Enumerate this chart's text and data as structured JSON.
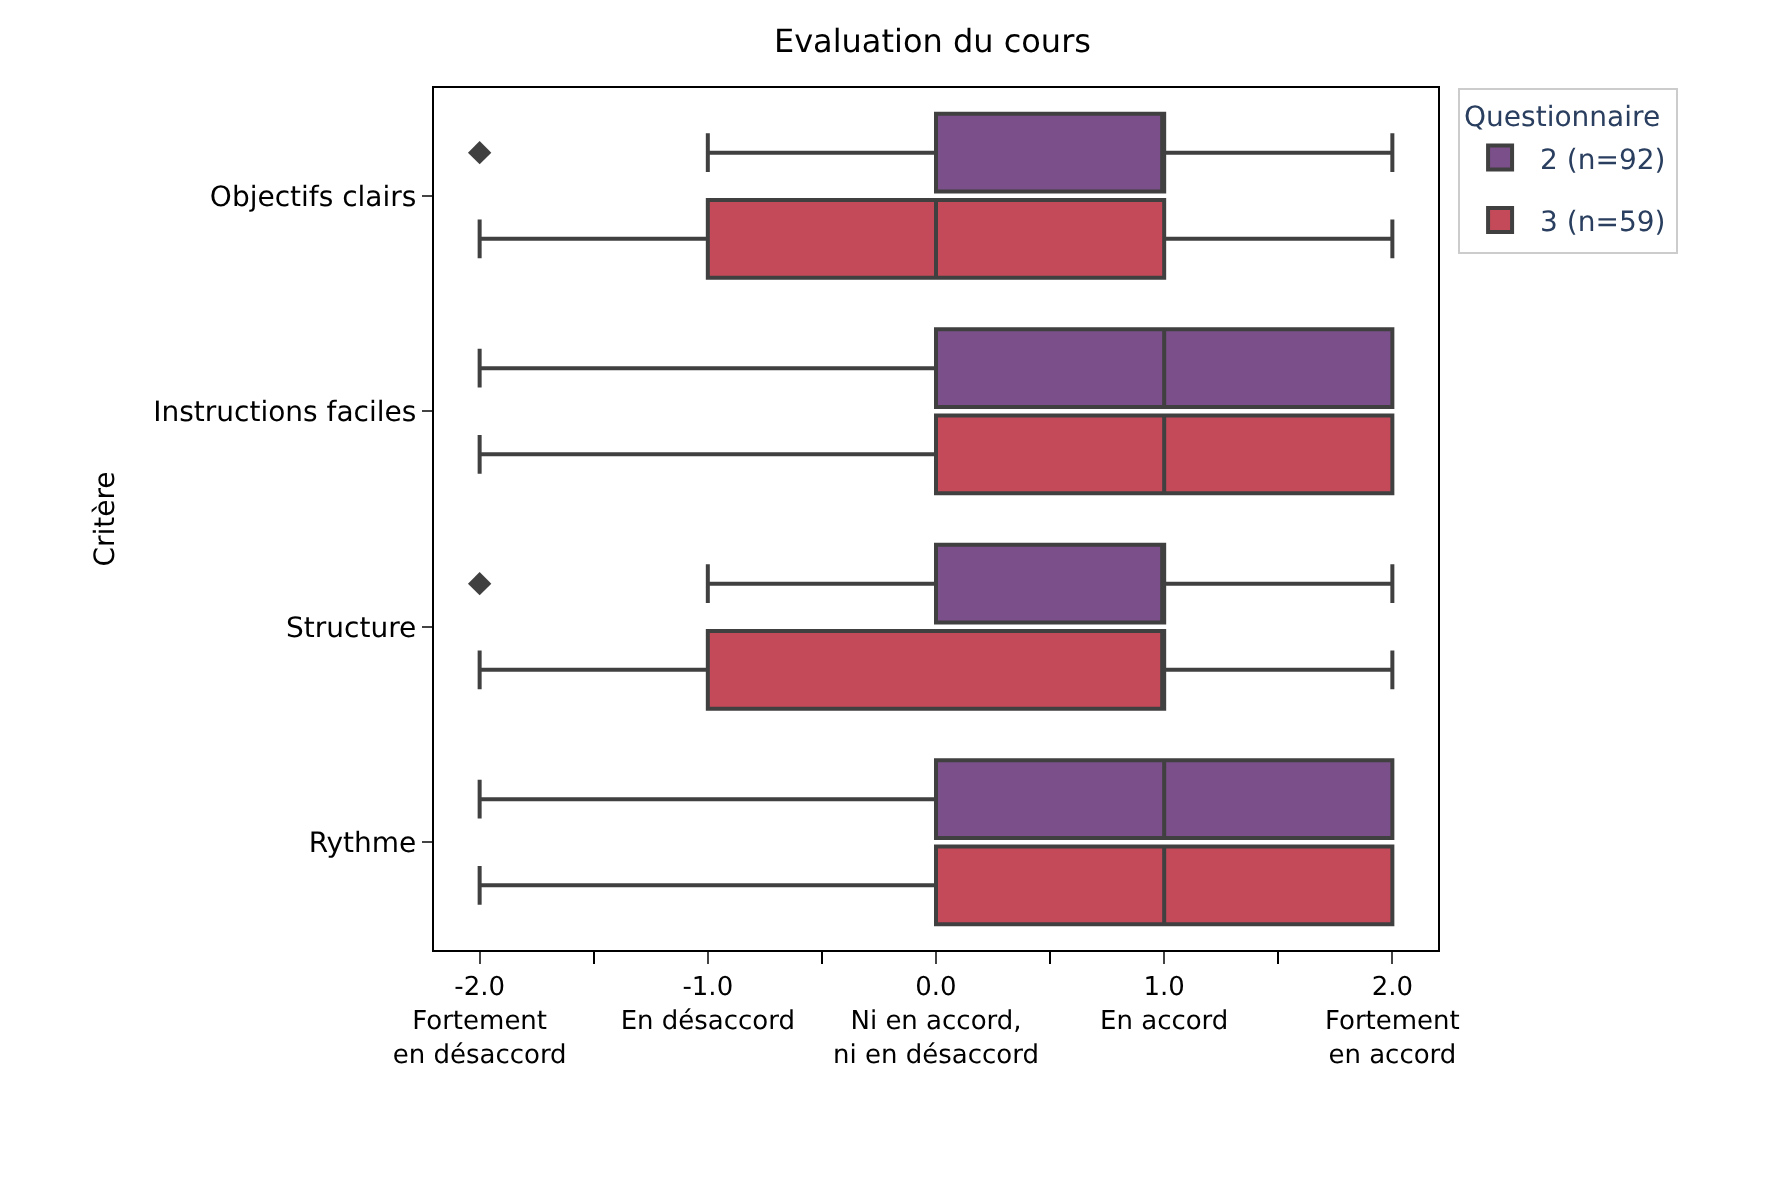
{
  "chart_data": {
    "type": "box",
    "title": "Evaluation du cours",
    "ylabel": "Critère",
    "orientation": "horizontal",
    "legend_title": "Questionnaire",
    "legend": "top right",
    "marker": "diamond",
    "categories": [
      "Objectifs clairs",
      "Instructions faciles",
      "Structure",
      "Rythme"
    ],
    "xlim": [
      -2.2,
      2.2
    ],
    "xticks": [
      {
        "value": -2,
        "label": "-2.0\nFortement\nen désaccord"
      },
      {
        "value": -1.5,
        "label": null
      },
      {
        "value": -1,
        "label": "-1.0\nEn désaccord"
      },
      {
        "value": -0.5,
        "label": null
      },
      {
        "value": 0,
        "label": "0.0\nNi en accord,\nni en désaccord"
      },
      {
        "value": 0.5,
        "label": null
      },
      {
        "value": 1,
        "label": "1.0\nEn accord"
      },
      {
        "value": 1.5,
        "label": null
      },
      {
        "value": 2,
        "label": "2.0\nFortement\nen accord"
      }
    ],
    "series": [
      {
        "name": "2 (n=92)",
        "color": "#7a4f8a",
        "boxes": [
          {
            "low": -1,
            "q1": 0,
            "median": 1,
            "q3": 1,
            "high": 2,
            "outliers": [
              -2
            ]
          },
          {
            "low": -2,
            "q1": 0,
            "median": 1,
            "q3": 2,
            "high": 2
          },
          {
            "low": -1,
            "q1": 0,
            "median": 1,
            "q3": 1,
            "high": 2,
            "outliers": [
              -2
            ]
          },
          {
            "low": -2,
            "q1": 0,
            "median": 1,
            "q3": 2,
            "high": 2
          }
        ]
      },
      {
        "name": "3 (n=59)",
        "color": "#c44a5a",
        "boxes": [
          {
            "low": -2,
            "q1": -1,
            "median": 0,
            "q3": 1,
            "high": 2
          },
          {
            "low": -2,
            "q1": 0,
            "median": 1,
            "q3": 2,
            "high": 2
          },
          {
            "low": -2,
            "q1": -1,
            "median": 1,
            "q3": 1,
            "high": 2
          },
          {
            "low": -2,
            "q1": 0,
            "median": 1,
            "q3": 2,
            "high": 2
          }
        ]
      }
    ]
  }
}
